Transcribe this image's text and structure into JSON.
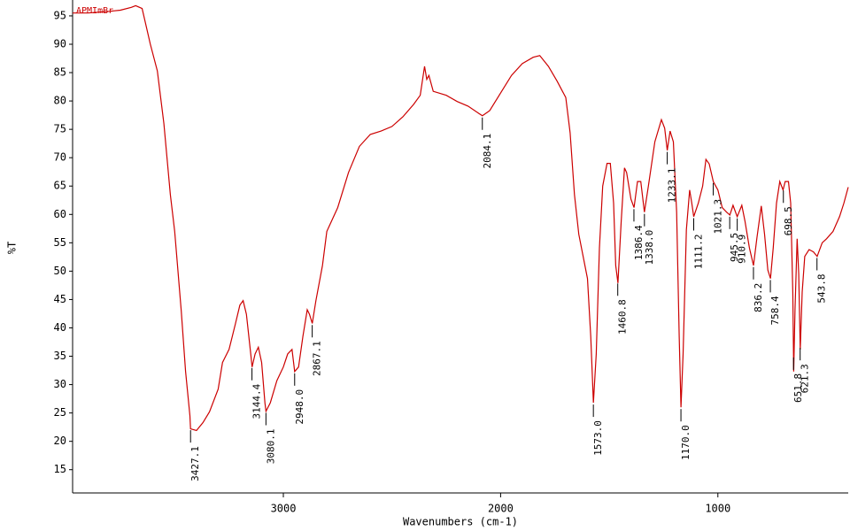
{
  "chart_data": {
    "type": "line",
    "annotation": "APMImBr",
    "xlabel": "Wavenumbers (cm-1)",
    "ylabel": "%T",
    "xlim": [
      3970,
      400
    ],
    "xticks": [
      3000,
      2000,
      1000
    ],
    "ylim": [
      10.9,
      97.8
    ],
    "yticks": [
      15,
      20,
      25,
      30,
      35,
      40,
      45,
      50,
      55,
      60,
      65,
      70,
      75,
      80,
      85,
      90,
      95
    ],
    "series": [
      {
        "name": "APMImBr",
        "color": "#cc0000",
        "x": [
          3970,
          3900,
          3800,
          3750,
          3700,
          3680,
          3650,
          3612,
          3580,
          3550,
          3520,
          3500,
          3470,
          3450,
          3430,
          3427,
          3400,
          3370,
          3340,
          3300,
          3280,
          3250,
          3220,
          3200,
          3185,
          3170,
          3150,
          3144,
          3130,
          3115,
          3100,
          3085,
          3080,
          3060,
          3030,
          3000,
          2980,
          2960,
          2948,
          2930,
          2910,
          2890,
          2880,
          2867,
          2850,
          2820,
          2800,
          2750,
          2700,
          2650,
          2600,
          2550,
          2500,
          2450,
          2400,
          2370,
          2350,
          2340,
          2330,
          2310,
          2250,
          2200,
          2150,
          2100,
          2084,
          2050,
          2000,
          1950,
          1900,
          1850,
          1820,
          1780,
          1740,
          1700,
          1680,
          1660,
          1640,
          1620,
          1600,
          1585,
          1573,
          1560,
          1545,
          1530,
          1510,
          1495,
          1480,
          1470,
          1460,
          1445,
          1430,
          1420,
          1400,
          1386,
          1370,
          1355,
          1338,
          1320,
          1290,
          1260,
          1245,
          1233,
          1220,
          1205,
          1190,
          1178,
          1170,
          1160,
          1145,
          1130,
          1120,
          1111,
          1090,
          1070,
          1055,
          1040,
          1021,
          1000,
          980,
          960,
          945,
          930,
          911,
          890,
          875,
          855,
          836,
          820,
          800,
          785,
          770,
          758,
          745,
          730,
          715,
          700,
          690,
          675,
          665,
          655,
          651,
          645,
          635,
          628,
          621,
          612,
          600,
          580,
          560,
          543,
          520,
          500,
          470,
          440,
          420,
          400
        ],
        "values": [
          95.5,
          95.5,
          95.8,
          96,
          96.5,
          96.8,
          96.3,
          90,
          85.3,
          76,
          63.5,
          57,
          43,
          32.3,
          24.5,
          22.2,
          21.9,
          23.3,
          25.2,
          29.2,
          33.9,
          36.2,
          40.8,
          44,
          44.8,
          42.4,
          35.4,
          33.1,
          35.4,
          36.6,
          33.9,
          26.8,
          25.3,
          26.8,
          30.7,
          33.1,
          35.4,
          36.2,
          32.3,
          33.1,
          38.5,
          43.2,
          42.4,
          40.8,
          44.8,
          51,
          57,
          61.2,
          67.4,
          72,
          74.1,
          74.7,
          75.5,
          77.2,
          79.4,
          81,
          86.1,
          83.8,
          84.5,
          81.7,
          81,
          79.9,
          79.1,
          77.8,
          77.4,
          78.3,
          81.4,
          84.5,
          86.6,
          87.7,
          88,
          86.1,
          83.5,
          80.6,
          74.4,
          63.5,
          56.5,
          52.6,
          48.7,
          38.5,
          26.8,
          35.4,
          54.1,
          65,
          69,
          69,
          62,
          51,
          47.9,
          58.8,
          68.2,
          67.4,
          62.7,
          61.2,
          65.8,
          65.8,
          60.4,
          65,
          72.8,
          76.7,
          75.2,
          71.3,
          74.7,
          72.8,
          60.4,
          38.5,
          26,
          35.4,
          57.3,
          64.3,
          62,
          59.6,
          62,
          65,
          69.7,
          68.9,
          65.8,
          64.3,
          61.2,
          60.4,
          59.9,
          61.6,
          59.6,
          61.6,
          58.8,
          54.1,
          51,
          55.9,
          61.5,
          56.5,
          50.2,
          48.7,
          54.1,
          62,
          65.8,
          64.3,
          65.8,
          65.8,
          62,
          46.3,
          32.3,
          43.2,
          55.7,
          49.5,
          36.2,
          46.3,
          52.6,
          53.8,
          53.4,
          52.6,
          55,
          55.7,
          57,
          59.6,
          62,
          64.8
        ]
      }
    ],
    "peaks": {
      "x": [
        3427.1,
        3144.4,
        3080.1,
        2948.0,
        2867.1,
        2084.1,
        1573.0,
        1460.8,
        1386.4,
        1338.0,
        1233.1,
        1170.0,
        1111.2,
        1021.3,
        945.5,
        910.9,
        836.2,
        758.4,
        698.5,
        651.8,
        621.3,
        543.8
      ],
      "value_labels": [
        "3427.1",
        "3144.4",
        "3080.1",
        "2948.0",
        "2867.1",
        "2084.1",
        "1573.0",
        "1460.8",
        "1386.4",
        "1338.0",
        "1233.1",
        "1170.0",
        "1111.2",
        "1021.3",
        "945.5",
        "910.9",
        "836.2",
        "758.4",
        "698.5",
        "651.8",
        "621.3",
        "543.8"
      ]
    }
  }
}
